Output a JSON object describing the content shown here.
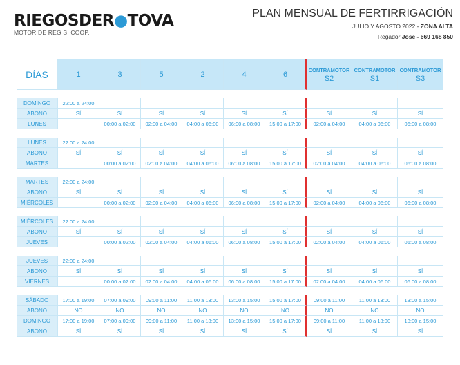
{
  "logo": {
    "name_a": "RIEGOSDER",
    "name_drop": "●",
    "name_b": "TOVA",
    "subtitle": "MOTOR DE REG S. COOP."
  },
  "header": {
    "title": "PLAN MENSUAL DE FERTIRRIGACIÓN",
    "period": "JULIO Y AGOSTO 2022 - ",
    "zone": "ZONA ALTA",
    "regador_label": "Regador ",
    "regador_name": "Jose - 669 168 850"
  },
  "table": {
    "dias_label": "DÍAS",
    "columns": [
      "1",
      "3",
      "5",
      "2",
      "4",
      "6"
    ],
    "contramotor_label": "CONTRAMOTOR",
    "contramotor_cols": [
      "S2",
      "S1",
      "S3"
    ],
    "blocks": [
      {
        "days": [
          "DOMINGO",
          "ABONO",
          "LUNES"
        ],
        "row1": [
          "22:00 a 24:00",
          "",
          "",
          "",
          "",
          "",
          "",
          "",
          ""
        ],
        "row2": [
          "SÍ",
          "SÍ",
          "SÍ",
          "SÍ",
          "SÍ",
          "SÍ",
          "SÍ",
          "SÍ",
          "SÍ"
        ],
        "row3": [
          "",
          "00:00 a 02:00",
          "02:00 a 04:00",
          "04:00 a 06:00",
          "06:00 a 08:00",
          "15:00 a 17:00",
          "02:00 a 04:00",
          "04:00 a 06:00",
          "06:00 a 08:00"
        ]
      },
      {
        "days": [
          "LUNES",
          "ABONO",
          "MARTES"
        ],
        "row1": [
          "22:00 a 24:00",
          "",
          "",
          "",
          "",
          "",
          "",
          "",
          ""
        ],
        "row2": [
          "SÍ",
          "SÍ",
          "SÍ",
          "SÍ",
          "SÍ",
          "SÍ",
          "SÍ",
          "SÍ",
          "SÍ"
        ],
        "row3": [
          "",
          "00:00 a 02:00",
          "02:00 a 04:00",
          "04:00 a 06:00",
          "06:00 a 08:00",
          "15:00 a 17:00",
          "02:00 a 04:00",
          "04:00 a 06:00",
          "06:00 a 08:00"
        ]
      },
      {
        "days": [
          "MARTES",
          "ABONO",
          "MIÉRCOLES"
        ],
        "row1": [
          "22:00 a 24:00",
          "",
          "",
          "",
          "",
          "",
          "",
          "",
          ""
        ],
        "row2": [
          "SÍ",
          "SÍ",
          "SÍ",
          "SÍ",
          "SÍ",
          "SÍ",
          "SÍ",
          "SÍ",
          "SÍ"
        ],
        "row3": [
          "",
          "00:00 a 02:00",
          "02:00 a 04:00",
          "04:00 a 06:00",
          "06:00 a 08:00",
          "15:00 a 17:00",
          "02:00 a 04:00",
          "04:00 a 06:00",
          "06:00 a 08:00"
        ]
      },
      {
        "days": [
          "MIÉRCOLES",
          "ABONO",
          "JUEVES"
        ],
        "row1": [
          "22:00 a 24:00",
          "",
          "",
          "",
          "",
          "",
          "",
          "",
          ""
        ],
        "row2": [
          "SÍ",
          "SÍ",
          "SÍ",
          "SÍ",
          "SÍ",
          "SÍ",
          "SÍ",
          "SÍ",
          "SÍ"
        ],
        "row3": [
          "",
          "00:00 a 02:00",
          "02:00 a 04:00",
          "04:00 a 06:00",
          "06:00 a 08:00",
          "15:00 a 17:00",
          "02:00 a 04:00",
          "04:00 a 06:00",
          "06:00 a 08:00"
        ]
      },
      {
        "days": [
          "JUEVES",
          "ABONO",
          "VIERNES"
        ],
        "row1": [
          "22:00 a 24:00",
          "",
          "",
          "",
          "",
          "",
          "",
          "",
          ""
        ],
        "row2": [
          "SÍ",
          "SÍ",
          "SÍ",
          "SÍ",
          "SÍ",
          "SÍ",
          "SÍ",
          "SÍ",
          "SÍ"
        ],
        "row3": [
          "",
          "00:00 a 02:00",
          "02:00 a 04:00",
          "04:00 a 06:00",
          "06:00 a 08:00",
          "15:00 a 17:00",
          "02:00 a 04:00",
          "04:00 a 06:00",
          "06:00 a 08:00"
        ]
      }
    ],
    "weekend": [
      {
        "day": "SÁBADO",
        "times": [
          "17:00 a 19:00",
          "07:00 a 09:00",
          "09:00 a 11:00",
          "11:00 a 13:00",
          "13:00 a 15:00",
          "15:00 a 17:00",
          "09:00 a 11:00",
          "11:00 a 13:00",
          "13:00 a 15:00"
        ]
      },
      {
        "day": "ABONO",
        "times": [
          "NO",
          "NO",
          "NO",
          "NO",
          "NO",
          "NO",
          "NO",
          "NO",
          "NO"
        ]
      },
      {
        "day": "DOMINGO",
        "times": [
          "17:00 a 19:00",
          "07:00 a 09:00",
          "09:00 a 11:00",
          "11:00 a 13:00",
          "13:00 a 15:00",
          "15:00 a 17:00",
          "09:00 a 11:00",
          "11:00 a 13:00",
          "13:00 a 15:00"
        ]
      },
      {
        "day": "ABONO",
        "times": [
          "SÍ",
          "SÍ",
          "SÍ",
          "SÍ",
          "SÍ",
          "SÍ",
          "SÍ",
          "SÍ",
          "SÍ"
        ]
      }
    ]
  },
  "colors": {
    "accent": "#2c9ad6",
    "header_bg": "#c6e7f8",
    "day_bg": "#d9eef9",
    "divider": "#e03030"
  }
}
